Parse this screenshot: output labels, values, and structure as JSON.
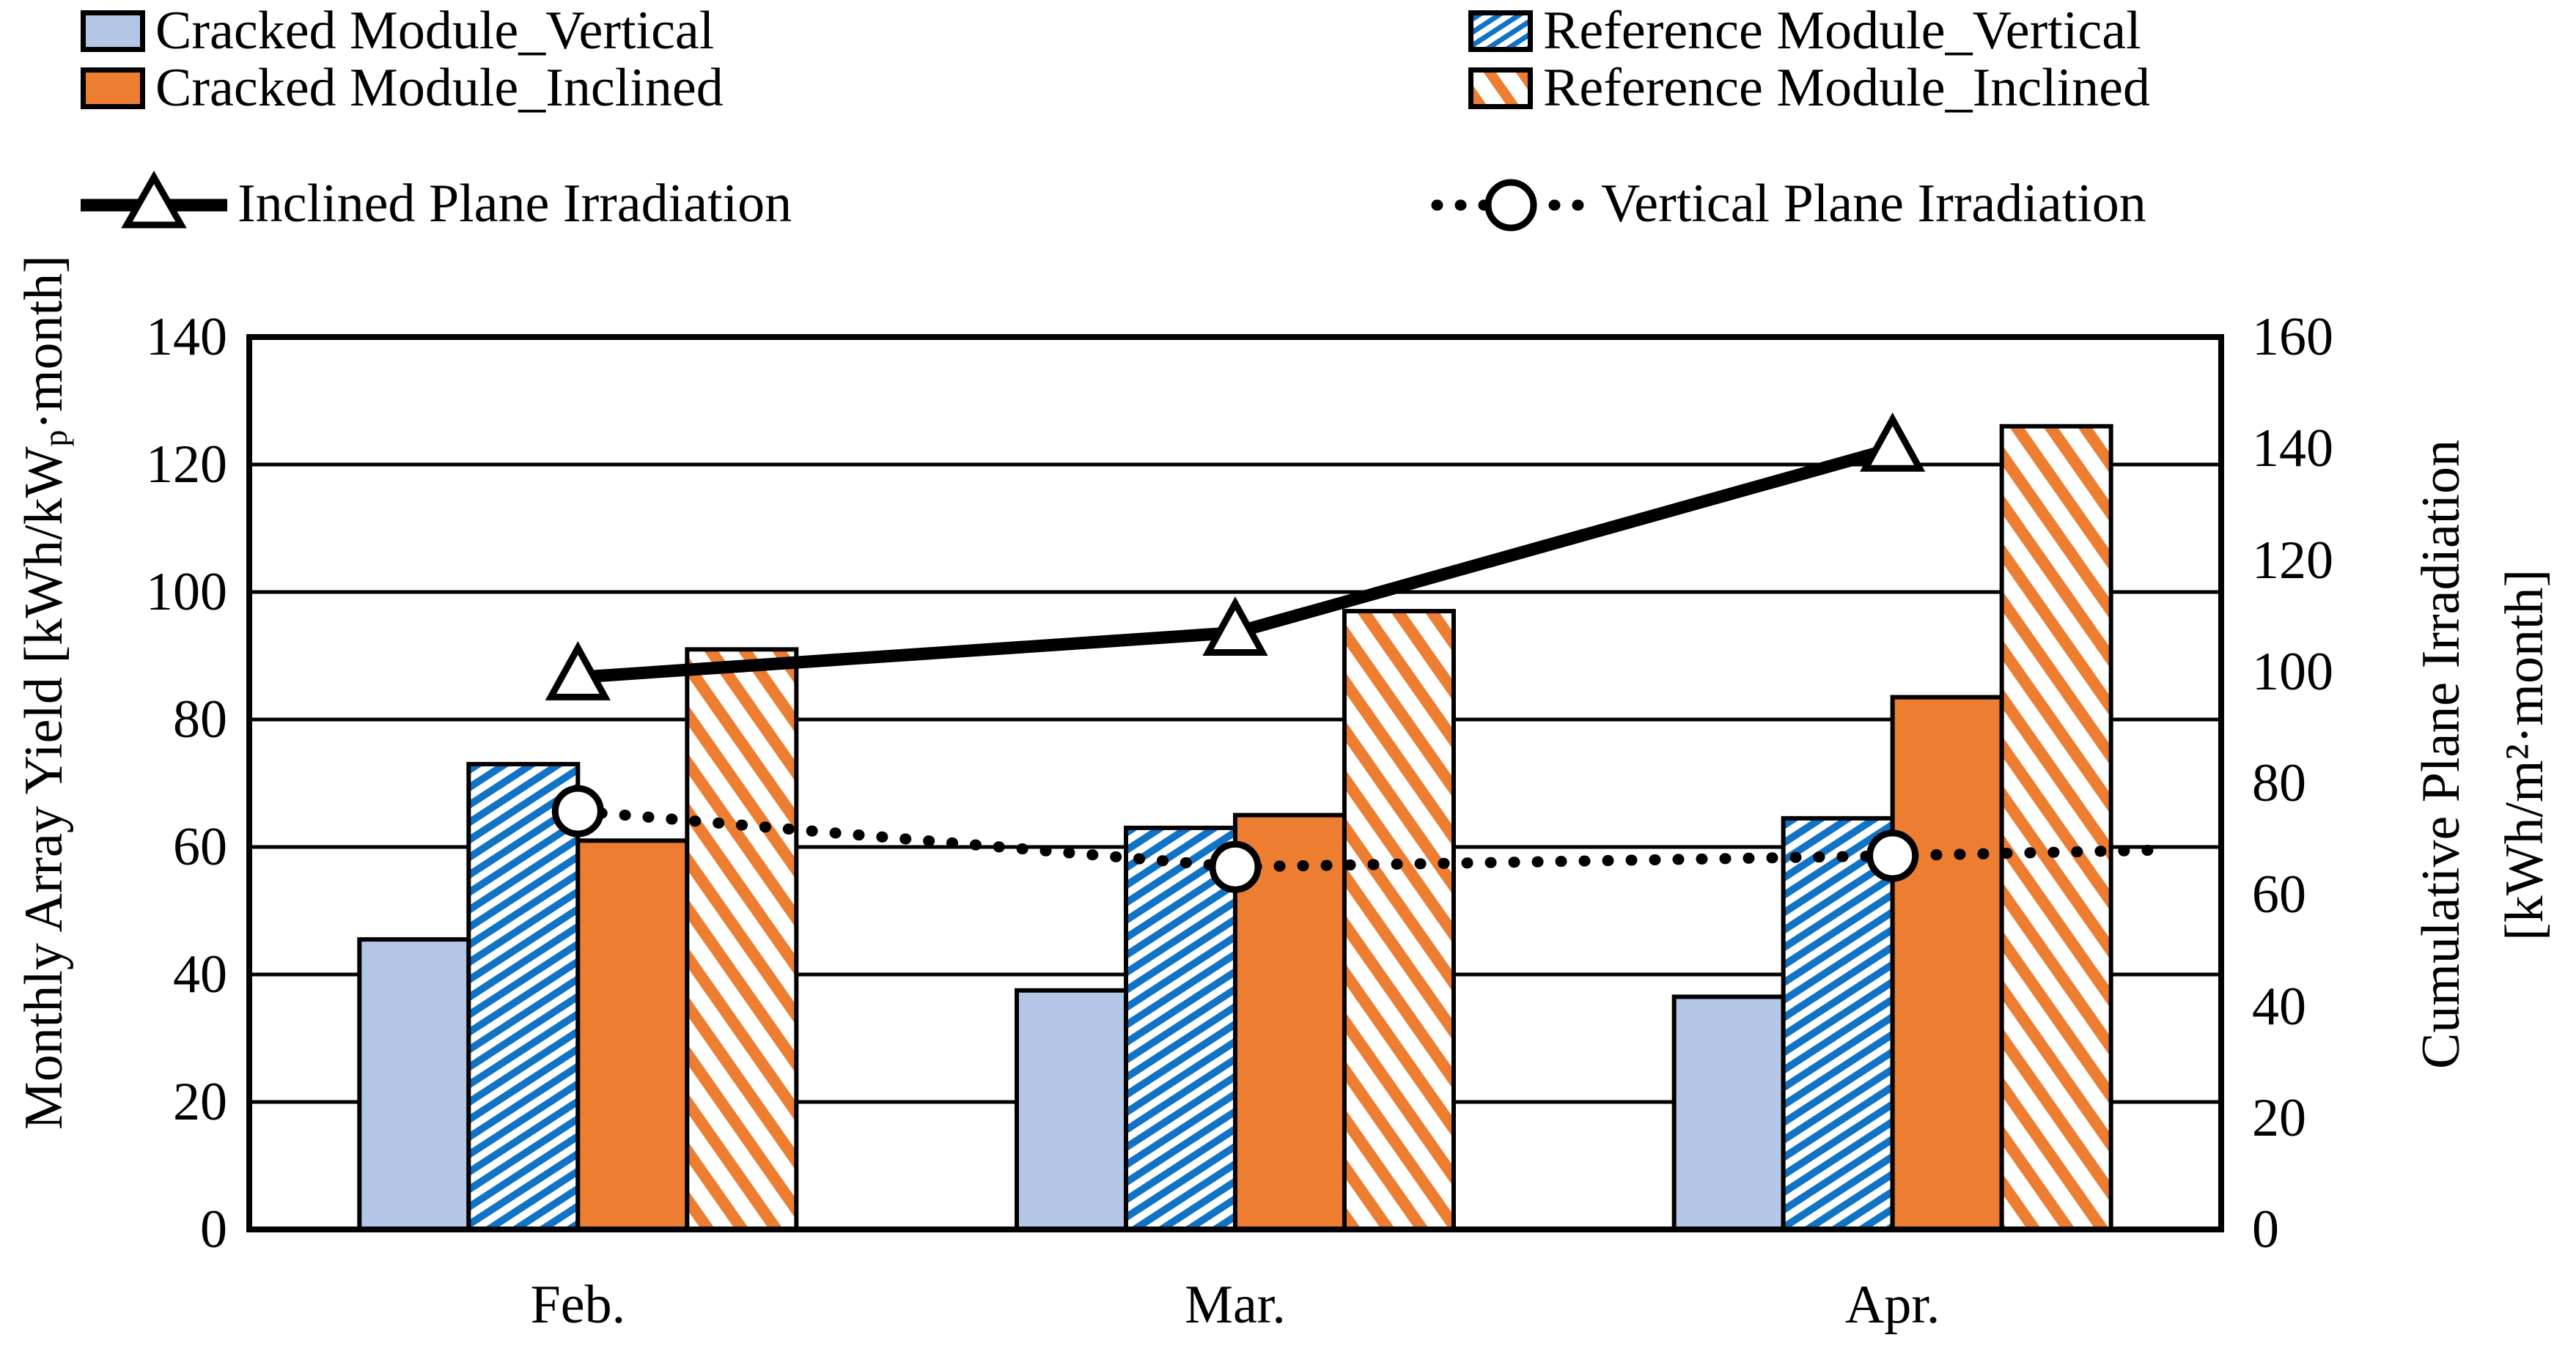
{
  "legend": {
    "items": [
      {
        "label": "Cracked Module_Vertical",
        "swatch": "solid-light-blue"
      },
      {
        "label": "Reference Module_Vertical",
        "swatch": "hatch-blue"
      },
      {
        "label": "Cracked Module_Inclined",
        "swatch": "solid-orange"
      },
      {
        "label": "Reference Module_Inclined",
        "swatch": "hatch-orange"
      },
      {
        "label": "Inclined Plane Irradiation",
        "swatch": "solid-line-triangle-marker"
      },
      {
        "label": "Vertical Plane Irradiation",
        "swatch": "dotted-line-circle-marker"
      }
    ]
  },
  "colors": {
    "light_blue": "#B4C7E7",
    "hatch_blue": "#1173C5",
    "orange": "#ED7D31",
    "line_black": "#000000"
  },
  "chart_data": {
    "type": "combo-bar-line",
    "categories": [
      "Feb.",
      "Mar.",
      "Apr."
    ],
    "bar_series": [
      {
        "name": "Cracked Module_Vertical",
        "axis": "left",
        "style": "solid",
        "color": "#B4C7E7",
        "values": [
          45.5,
          37.5,
          36.5
        ]
      },
      {
        "name": "Reference Module_Vertical",
        "axis": "left",
        "style": "hatch-forward",
        "color": "#1173C5",
        "values": [
          73,
          63,
          64.5
        ]
      },
      {
        "name": "Cracked Module_Inclined",
        "axis": "left",
        "style": "solid",
        "color": "#ED7D31",
        "values": [
          61,
          65,
          83.5
        ]
      },
      {
        "name": "Reference Module_Inclined",
        "axis": "left",
        "style": "hatch-back",
        "color": "#ED7D31",
        "values": [
          91,
          97,
          126
        ]
      }
    ],
    "line_series": [
      {
        "name": "Inclined Plane Irradiation",
        "axis": "right",
        "style": "solid",
        "marker": "triangle",
        "color": "#000000",
        "values": [
          99,
          107,
          140
        ]
      },
      {
        "name": "Vertical Plane Irradiation",
        "axis": "right",
        "style": "dotted",
        "marker": "circle",
        "color": "#000000",
        "values": [
          75,
          65,
          67
        ]
      }
    ],
    "left_axis": {
      "label": "Monthly Array Yield [kWh/kWp·month]",
      "label_parts": {
        "pre": "Monthly Array Yield [kWh/kW",
        "sub": "p",
        "post": "·month]"
      },
      "min": 0,
      "max": 140,
      "step": 20,
      "ticks": [
        0,
        20,
        40,
        60,
        80,
        100,
        120,
        140
      ]
    },
    "right_axis": {
      "label": "Cumulative Plane Irradiation [kWh/m²·month]",
      "label_line1": "Cumulative Plane Irradiation",
      "label_line2": "[kWh/m²·month]",
      "min": 0,
      "max": 160,
      "step": 20,
      "ticks": [
        0,
        20,
        40,
        60,
        80,
        100,
        120,
        140,
        160
      ]
    },
    "grid": "horizontal",
    "legend_position": "top"
  }
}
